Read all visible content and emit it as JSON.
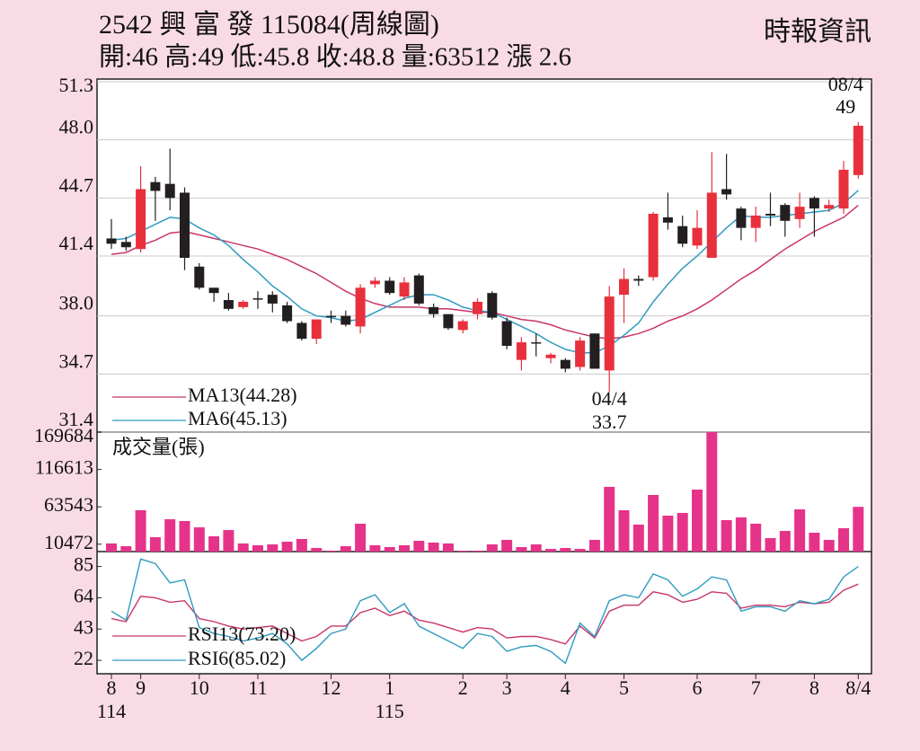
{
  "header": {
    "title": "2542 興 富 發 115084(周線圖)",
    "subtitle": "開:46 高:49 低:45.8 收:48.8 量:63512 漲 2.6",
    "source": "時報資訊"
  },
  "chart_data": [
    {
      "type": "candlestick",
      "open": [
        42.4,
        42.2,
        41.8,
        45.6,
        45.5,
        45.0,
        40.8,
        39.6,
        38.9,
        38.5,
        39.0,
        39.2,
        38.6,
        37.6,
        36.7,
        38.0,
        38.0,
        37.4,
        39.8,
        40.0,
        39.1,
        40.3,
        38.5,
        38.1,
        37.2,
        38.1,
        39.3,
        37.7,
        35.5,
        36.5,
        35.6,
        35.5,
        35.1,
        37.0,
        34.9,
        39.2,
        40.1,
        40.2,
        43.6,
        43.1,
        42.0,
        41.3,
        45.2,
        44.1,
        43.0,
        43.8,
        44.3,
        43.5,
        44.7,
        44.1,
        44.1,
        46.0
      ],
      "high": [
        43.5,
        42.5,
        46.5,
        45.9,
        47.5,
        45.3,
        41.0,
        39.6,
        39.3,
        38.9,
        39.4,
        39.4,
        38.8,
        37.7,
        37.8,
        38.3,
        38.3,
        39.8,
        40.2,
        40.2,
        40.2,
        40.4,
        38.7,
        38.1,
        37.8,
        39.0,
        39.4,
        37.9,
        36.8,
        37.0,
        35.9,
        35.6,
        36.8,
        37.0,
        39.7,
        40.7,
        40.3,
        43.9,
        45.0,
        43.7,
        44.0,
        47.3,
        47.2,
        44.2,
        44.2,
        45.0,
        44.4,
        45.0,
        44.8,
        44.6,
        46.8,
        49
      ],
      "low": [
        41.8,
        41.7,
        41.6,
        43.4,
        44.0,
        40.6,
        39.5,
        38.8,
        38.3,
        38.4,
        38.4,
        38.2,
        37.6,
        36.6,
        36.4,
        37.6,
        37.4,
        37.0,
        39.6,
        39.2,
        38.9,
        38.6,
        37.9,
        37.2,
        37.0,
        37.8,
        37.8,
        36.1,
        34.9,
        35.7,
        35.3,
        34.8,
        34.9,
        35.0,
        33.7,
        37.6,
        39.7,
        40.0,
        42.9,
        41.9,
        41.8,
        41.3,
        44.6,
        42.3,
        42.2,
        43.1,
        42.5,
        43.0,
        42.5,
        43.9,
        43.8,
        45.8
      ],
      "close": [
        42.1,
        41.9,
        45.2,
        45.1,
        44.7,
        41.3,
        39.6,
        39.3,
        38.4,
        38.8,
        39.0,
        38.7,
        37.7,
        36.7,
        37.8,
        38.0,
        37.5,
        39.6,
        40.0,
        39.3,
        39.9,
        38.7,
        38.1,
        37.3,
        37.7,
        38.8,
        37.9,
        36.3,
        36.5,
        36.5,
        35.8,
        35.0,
        36.6,
        35.0,
        39.1,
        40.1,
        40.0,
        43.8,
        43.3,
        42.1,
        43.0,
        45.0,
        44.9,
        43.0,
        43.7,
        43.7,
        43.4,
        44.2,
        44.1,
        44.3,
        46.3,
        48.8
      ],
      "up_color": "#e8303c",
      "down_color": "#231f20",
      "series": [
        {
          "name": "MA13(44.28)",
          "color": "#c8356a",
          "values": [
            41.5,
            41.6,
            42.0,
            42.3,
            42.7,
            42.8,
            42.6,
            42.4,
            42.2,
            42.0,
            41.8,
            41.5,
            41.2,
            40.8,
            40.4,
            39.9,
            39.4,
            39.0,
            38.7,
            38.5,
            38.5,
            38.5,
            38.4,
            38.4,
            38.3,
            38.2,
            38.2,
            38.0,
            37.8,
            37.7,
            37.5,
            37.2,
            37.0,
            36.8,
            36.7,
            36.8,
            37.0,
            37.3,
            37.7,
            38.0,
            38.4,
            38.9,
            39.5,
            40.1,
            40.6,
            41.2,
            41.8,
            42.3,
            42.8,
            43.2,
            43.6,
            44.28
          ]
        },
        {
          "name": "MA6(45.13)",
          "color": "#2f9bbf",
          "values": [
            42.3,
            42.4,
            42.8,
            43.2,
            43.6,
            43.5,
            43.0,
            42.6,
            42.0,
            41.2,
            40.5,
            39.7,
            39.1,
            38.4,
            38.0,
            37.9,
            37.7,
            37.8,
            38.2,
            38.6,
            39.0,
            39.2,
            39.2,
            38.9,
            38.5,
            38.3,
            38.2,
            37.8,
            37.4,
            37.0,
            36.5,
            36.1,
            35.9,
            35.9,
            36.3,
            36.9,
            37.6,
            38.8,
            39.8,
            40.7,
            41.4,
            42.2,
            43.0,
            43.7,
            43.6,
            43.6,
            43.7,
            43.8,
            43.9,
            44.0,
            44.4,
            45.13
          ]
        }
      ],
      "high_label": {
        "date": "08/4",
        "value": 49
      },
      "low_label": {
        "date": "04/4",
        "value": 33.7
      },
      "ylim": [
        31.4,
        51.3
      ],
      "yticks": [
        31.4,
        34.7,
        {
          "value": 38,
          "label": "38.0"
        },
        41.4,
        44.7,
        {
          "value": 48,
          "label": "48.0"
        },
        51.3
      ],
      "grid": true
    },
    {
      "type": "bar",
      "title": "成交量(張)",
      "color": "#e6338a",
      "values": [
        11500,
        7700,
        58700,
        20400,
        45900,
        43400,
        34400,
        21700,
        30600,
        11500,
        8900,
        10200,
        14000,
        17900,
        5100,
        1300,
        7700,
        39600,
        8900,
        6400,
        8900,
        15300,
        12800,
        11500,
        1300,
        1300,
        10200,
        16600,
        6400,
        10200,
        3800,
        5100,
        3800,
        16600,
        91900,
        58700,
        38300,
        80400,
        51000,
        54900,
        88000,
        169684,
        44700,
        48500,
        39600,
        19100,
        29300,
        60000,
        26800,
        16600,
        33200,
        63512
      ],
      "ylim": [
        0,
        169684
      ],
      "yticks": [
        10472,
        63543,
        116613,
        169684
      ],
      "grid": false
    },
    {
      "type": "line",
      "categories": [
        "8",
        null,
        "9",
        null,
        null,
        null,
        "10",
        null,
        null,
        null,
        "11",
        null,
        null,
        null,
        null,
        "12",
        null,
        null,
        null,
        "1",
        null,
        null,
        null,
        null,
        "2",
        null,
        null,
        "3",
        null,
        null,
        null,
        "4",
        null,
        null,
        null,
        "5",
        null,
        null,
        null,
        null,
        "6",
        null,
        null,
        null,
        "7",
        null,
        null,
        null,
        "8",
        null,
        null,
        "8/4"
      ],
      "years": [
        "114",
        null,
        null,
        null,
        null,
        null,
        null,
        null,
        null,
        null,
        null,
        null,
        null,
        null,
        null,
        null,
        null,
        null,
        null,
        "115",
        null,
        null,
        null,
        null,
        null,
        null,
        null,
        null,
        null,
        null,
        null,
        null,
        null,
        null,
        null,
        null,
        null,
        null,
        null,
        null,
        null,
        null,
        null,
        null,
        null,
        null,
        null,
        null,
        null,
        null,
        null,
        null
      ],
      "series": [
        {
          "name": "RSI13(73.20)",
          "color": "#c8356a",
          "values": [
            50,
            48,
            65,
            64,
            61,
            62,
            50,
            48,
            45,
            43,
            44,
            45,
            40,
            35,
            38,
            45,
            45,
            54,
            57,
            52,
            55,
            49,
            47,
            44,
            41,
            44,
            43,
            37,
            38,
            38,
            36,
            33,
            45,
            37,
            55,
            59,
            59,
            68,
            66,
            61,
            63,
            68,
            67,
            57,
            59,
            59,
            58,
            61,
            60,
            61,
            69,
            73.2
          ]
        },
        {
          "name": "RSI6(85.02)",
          "color": "#2f9bbf",
          "values": [
            55,
            49,
            90,
            87,
            74,
            76,
            44,
            40,
            38,
            35,
            37,
            40,
            33,
            22,
            30,
            40,
            43,
            62,
            66,
            54,
            60,
            45,
            40,
            35,
            30,
            40,
            38,
            28,
            31,
            32,
            28,
            20,
            47,
            38,
            62,
            66,
            64,
            80,
            76,
            65,
            70,
            78,
            76,
            55,
            58,
            58,
            55,
            62,
            60,
            63,
            78,
            85.02
          ]
        }
      ],
      "ylim": [
        13,
        95
      ],
      "yticks": [
        22,
        43,
        64,
        85
      ],
      "grid": false
    }
  ]
}
